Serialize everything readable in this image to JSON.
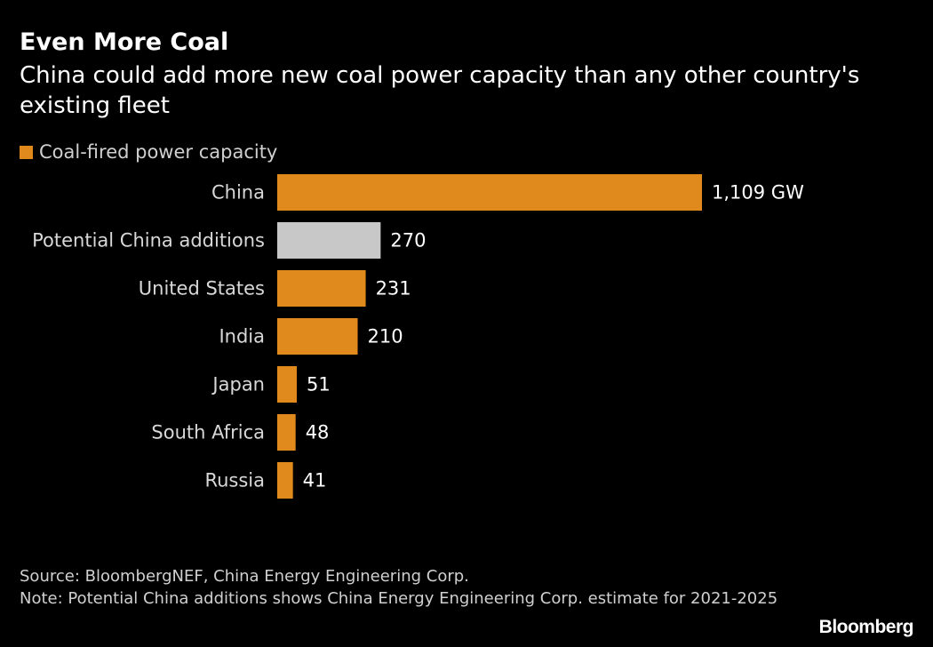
{
  "header": {
    "title": "Even More Coal",
    "subtitle": "China could add more new coal power capacity than any other country's existing fleet"
  },
  "legend": {
    "label": "Coal-fired power capacity",
    "color": "#e0891c"
  },
  "chart_data": {
    "type": "bar",
    "orientation": "horizontal",
    "title": "Even More Coal",
    "subtitle": "China could add more new coal power capacity than any other country's existing fleet",
    "xlabel": "",
    "ylabel": "",
    "unit": "GW",
    "grid": false,
    "legend_position": "top-left",
    "categories": [
      "China",
      "Potential China additions",
      "United States",
      "India",
      "Japan",
      "South Africa",
      "Russia"
    ],
    "series": [
      {
        "name": "Coal-fired power capacity",
        "values": [
          1109,
          270,
          231,
          210,
          51,
          48,
          41
        ]
      }
    ],
    "value_labels": [
      "1,109 GW",
      "270",
      "231",
      "210",
      "51",
      "48",
      "41"
    ],
    "bar_colors": [
      "#e0891c",
      "#c8c8c8",
      "#e0891c",
      "#e0891c",
      "#e0891c",
      "#e0891c",
      "#e0891c"
    ],
    "xlim": [
      0,
      1109
    ]
  },
  "footer": {
    "source": "Source: BloombergNEF, China Energy Engineering Corp.",
    "note": "Note: Potential China additions shows China Energy Engineering Corp. estimate for 2021-2025",
    "brand": "Bloomberg"
  },
  "colors": {
    "background": "#000000",
    "text": "#ffffff",
    "muted_text": "#d0d0d0",
    "accent": "#e0891c",
    "highlight_bar": "#c8c8c8"
  }
}
